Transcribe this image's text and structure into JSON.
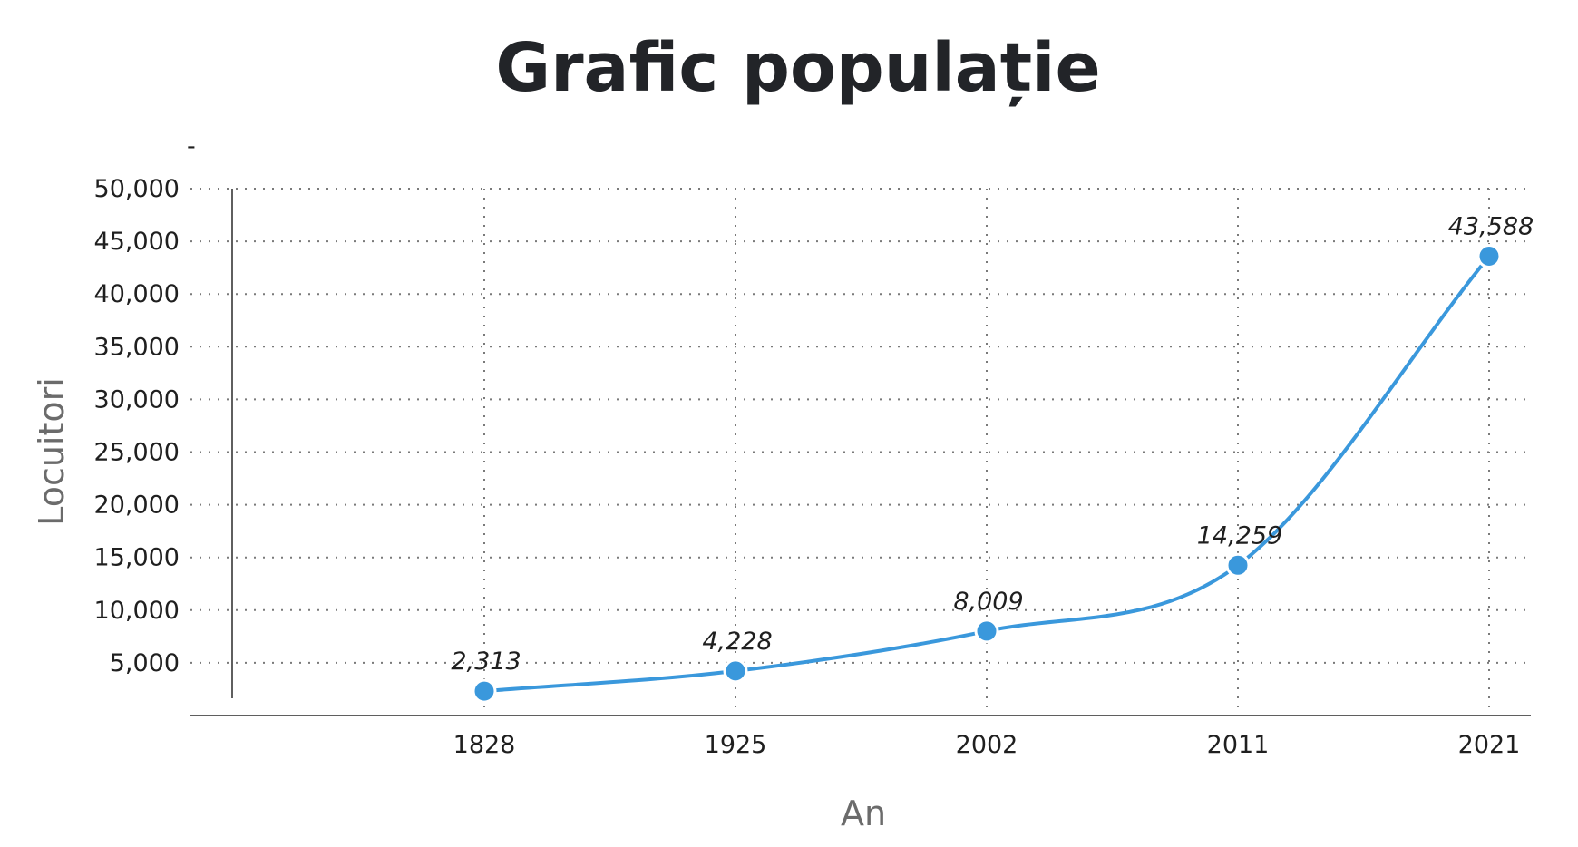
{
  "chart_data": {
    "type": "line",
    "title": "Grafic populație",
    "xlabel": "An",
    "ylabel": "Locuitori",
    "categories": [
      "1828",
      "1925",
      "2002",
      "2011",
      "2021"
    ],
    "series": [
      {
        "values": [
          2313,
          4228,
          8009,
          14259,
          43588
        ]
      }
    ],
    "data_labels": [
      "2,313",
      "4,228",
      "8,009",
      "14,259",
      "43,588"
    ],
    "y_ticks": [
      5000,
      10000,
      15000,
      20000,
      25000,
      30000,
      35000,
      40000,
      45000,
      50000
    ],
    "y_tick_labels": [
      "5,000",
      "10,000",
      "15,000",
      "20,000",
      "25,000",
      "30,000",
      "35,000",
      "40,000",
      "45,000",
      "50,000"
    ],
    "ylim": [
      0,
      50000
    ],
    "grid": true,
    "curve": "smooth",
    "top_mark": "-",
    "colors": {
      "series": "#3a98dc",
      "title": "#222428",
      "axis_label": "#6b6b6b"
    }
  }
}
